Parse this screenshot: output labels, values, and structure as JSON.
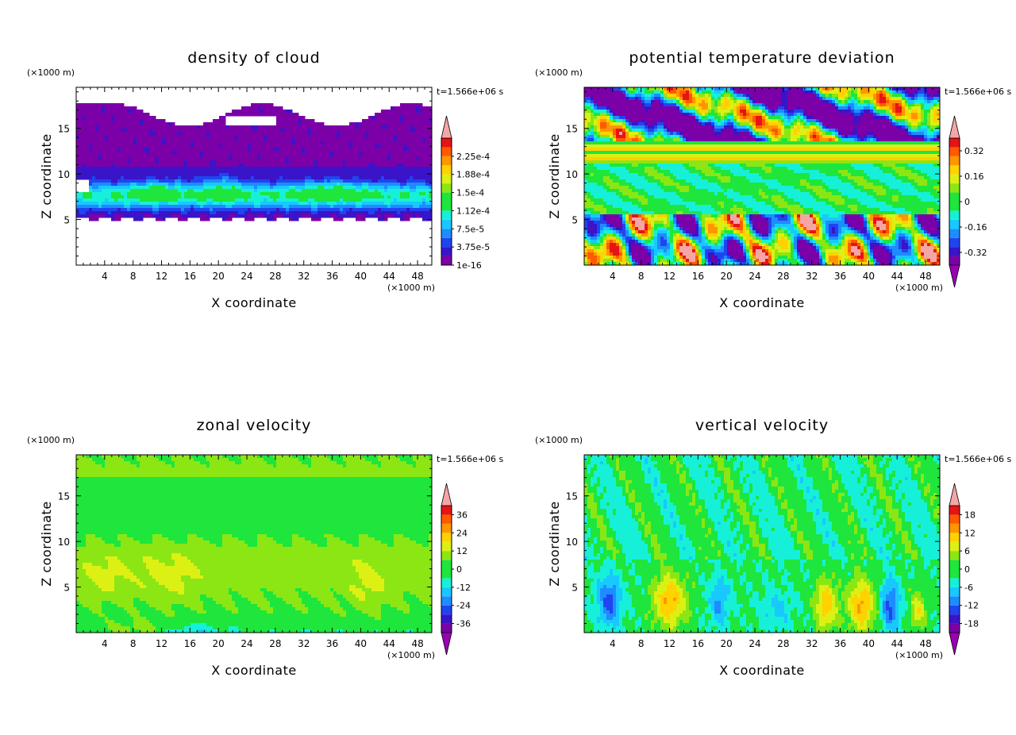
{
  "chart_data": [
    {
      "type": "heatmap",
      "title": "density of cloud",
      "xlabel": "X coordinate",
      "ylabel": "Z coordinate",
      "x_unit": "(×1000 m)",
      "y_unit": "(×1000 m)",
      "time": "t=1.566e+06 s",
      "x_ticks": [
        "4",
        "8",
        "12",
        "16",
        "20",
        "24",
        "28",
        "32",
        "36",
        "40",
        "44",
        "48"
      ],
      "y_ticks": [
        "5",
        "10",
        "15"
      ],
      "xlim": [
        0,
        50
      ],
      "ylim": [
        0,
        19.5
      ],
      "colorbar_labels": [
        "1e-16",
        "3.75e-5",
        "7.5e-5",
        "1.12e-4",
        "1.5e-4",
        "1.88e-4",
        "2.25e-4"
      ],
      "colorbar_arrows": "top",
      "pattern": "cloud"
    },
    {
      "type": "heatmap",
      "title": "potential temperature deviation",
      "xlabel": "X coordinate",
      "ylabel": "Z coordinate",
      "x_unit": "(×1000 m)",
      "y_unit": "(×1000 m)",
      "time": "t=1.566e+06 s",
      "x_ticks": [
        "4",
        "8",
        "12",
        "16",
        "20",
        "24",
        "28",
        "32",
        "36",
        "40",
        "44",
        "48"
      ],
      "y_ticks": [
        "5",
        "10",
        "15"
      ],
      "xlim": [
        0,
        50
      ],
      "ylim": [
        0,
        19.5
      ],
      "colorbar_labels": [
        "-0.32",
        "-0.16",
        "0",
        "0.16",
        "0.32"
      ],
      "colorbar_arrows": "both",
      "pattern": "theta"
    },
    {
      "type": "heatmap",
      "title": "zonal velocity",
      "xlabel": "X coordinate",
      "ylabel": "Z coordinate",
      "x_unit": "(×1000 m)",
      "y_unit": "(×1000 m)",
      "time": "t=1.566e+06 s",
      "x_ticks": [
        "4",
        "8",
        "12",
        "16",
        "20",
        "24",
        "28",
        "32",
        "36",
        "40",
        "44",
        "48"
      ],
      "y_ticks": [
        "5",
        "10",
        "15"
      ],
      "xlim": [
        0,
        50
      ],
      "ylim": [
        0,
        19.5
      ],
      "colorbar_labels": [
        "-36",
        "-24",
        "-12",
        "0",
        "12",
        "24",
        "36"
      ],
      "colorbar_arrows": "both",
      "pattern": "zonal"
    },
    {
      "type": "heatmap",
      "title": "vertical velocity",
      "xlabel": "X coordinate",
      "ylabel": "Z coordinate",
      "x_unit": "(×1000 m)",
      "y_unit": "(×1000 m)",
      "time": "t=1.566e+06 s",
      "x_ticks": [
        "4",
        "8",
        "12",
        "16",
        "20",
        "24",
        "28",
        "32",
        "36",
        "40",
        "44",
        "48"
      ],
      "y_ticks": [
        "5",
        "10",
        "15"
      ],
      "xlim": [
        0,
        50
      ],
      "ylim": [
        0,
        19.5
      ],
      "colorbar_labels": [
        "-18",
        "-12",
        "-6",
        "0",
        "6",
        "12",
        "18"
      ],
      "colorbar_arrows": "both",
      "pattern": "vertical"
    }
  ],
  "palette": [
    "#7b00a8",
    "#3a14c8",
    "#1f45f0",
    "#1e8cff",
    "#19c8ff",
    "#16f0d8",
    "#1ee63c",
    "#8ce614",
    "#dcf014",
    "#ffd200",
    "#ff9600",
    "#ff5a00",
    "#e61414",
    "#f4a6a6"
  ]
}
